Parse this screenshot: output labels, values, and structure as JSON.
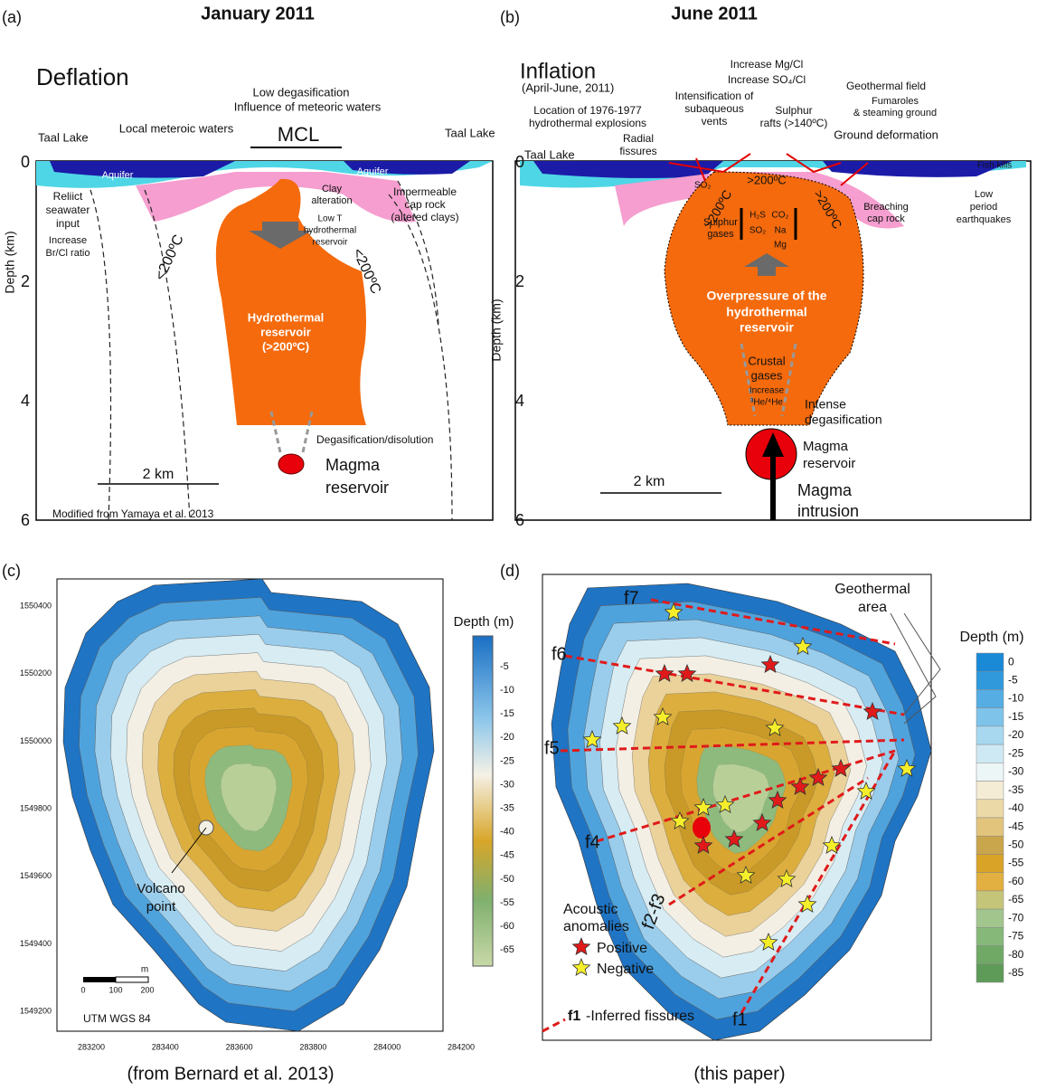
{
  "panel_a": {
    "letter": "(a)",
    "title": "January 2011",
    "texts": [
      "Deflation",
      "Low degasification",
      "Influence of meteoric waters",
      "Local meteroic waters",
      "MCL",
      "Taal Lake",
      "Taal Lake",
      "Aquifer",
      "Aquifer",
      "Reliict",
      "seawater",
      "input",
      "Increase",
      "Br/Cl ratio",
      "Clay",
      "alteration",
      "Impermeable",
      "cap rock",
      "(altered clays)",
      "Low T",
      "hydrothermal",
      "reservoir",
      "<200ºC",
      "<200ºC",
      "Hydrothermal",
      "reservoir",
      "(>200ºC)",
      "Degasification/disolution",
      "Magma",
      "reservoir",
      "2 km",
      "Modified from Yamaya et al. 2013"
    ],
    "y_axis": {
      "title": "Depth (km)",
      "ticks": [
        "0",
        "2",
        "4",
        "6"
      ]
    }
  },
  "panel_b": {
    "letter": "(b)",
    "title": "June 2011",
    "texts": [
      "Inflation",
      "(April-June, 2011)",
      "Location of 1976-1977",
      "hydrothermal explosions",
      "Radial",
      "fissures",
      "Intensification of",
      "subaqueous",
      "vents",
      "Increase Mg/Cl",
      "Increase SO₄/Cl",
      "Sulphur",
      "rafts (>140ºC)",
      "Geothermal field",
      "Fumaroles",
      "& steaming ground",
      "Ground deformation",
      "Fish kills",
      "Taal Lake",
      "SO₂",
      ">200ºC",
      ">200ºC",
      ">200ºC",
      "Sulphur",
      "gases",
      "H₂S",
      "SO₂",
      "CO₂",
      "Na",
      "Mg",
      "Breaching",
      "cap rock",
      "Low",
      "period",
      "earthquakes",
      "Overpressure of the",
      "hydrothermal",
      "reservoir",
      "Crustal",
      "gases",
      "Increase",
      "³He/⁴He",
      "Intense",
      "degasification",
      "Magma",
      "reservoir",
      "Magma",
      "intrusion",
      "2 km"
    ],
    "y_axis": {
      "title": "Depth (km)",
      "ticks": [
        "0",
        "2",
        "4",
        "6"
      ]
    }
  },
  "panel_c": {
    "letter": "(c)",
    "y_ticks": [
      "1550400",
      "1550200",
      "1550000",
      "1549800",
      "1549600",
      "1549400",
      "1549200"
    ],
    "x_ticks": [
      "283200",
      "283400",
      "283600",
      "283800",
      "284000",
      "284200"
    ],
    "texts": [
      "Volcano",
      "point",
      "m",
      "0",
      "100",
      "200",
      "UTM WGS 84"
    ],
    "colorbar": {
      "title": "Depth (m)",
      "ticks": [
        "-5",
        "-10",
        "-15",
        "-20",
        "-25",
        "-30",
        "-35",
        "-40",
        "-45",
        "-50",
        "-55",
        "-60",
        "-65"
      ]
    },
    "caption": "(from Bernard et al. 2013)"
  },
  "panel_d": {
    "letter": "(d)",
    "texts": [
      "f7",
      "f6",
      "f5",
      "f4",
      "f2-f3",
      "f1",
      "Geothermal",
      "area",
      "Acoustic",
      "anomalies",
      "Positive",
      "Negative",
      "f1",
      "-Inferred fissures"
    ],
    "colorbar": {
      "title": "Depth (m)",
      "ticks": [
        "0",
        "-5",
        "-10",
        "-15",
        "-20",
        "-25",
        "-30",
        "-35",
        "-40",
        "-45",
        "-50",
        "-55",
        "-60",
        "-65",
        "-70",
        "-75",
        "-80",
        "-85"
      ]
    },
    "caption": "(this paper)"
  }
}
